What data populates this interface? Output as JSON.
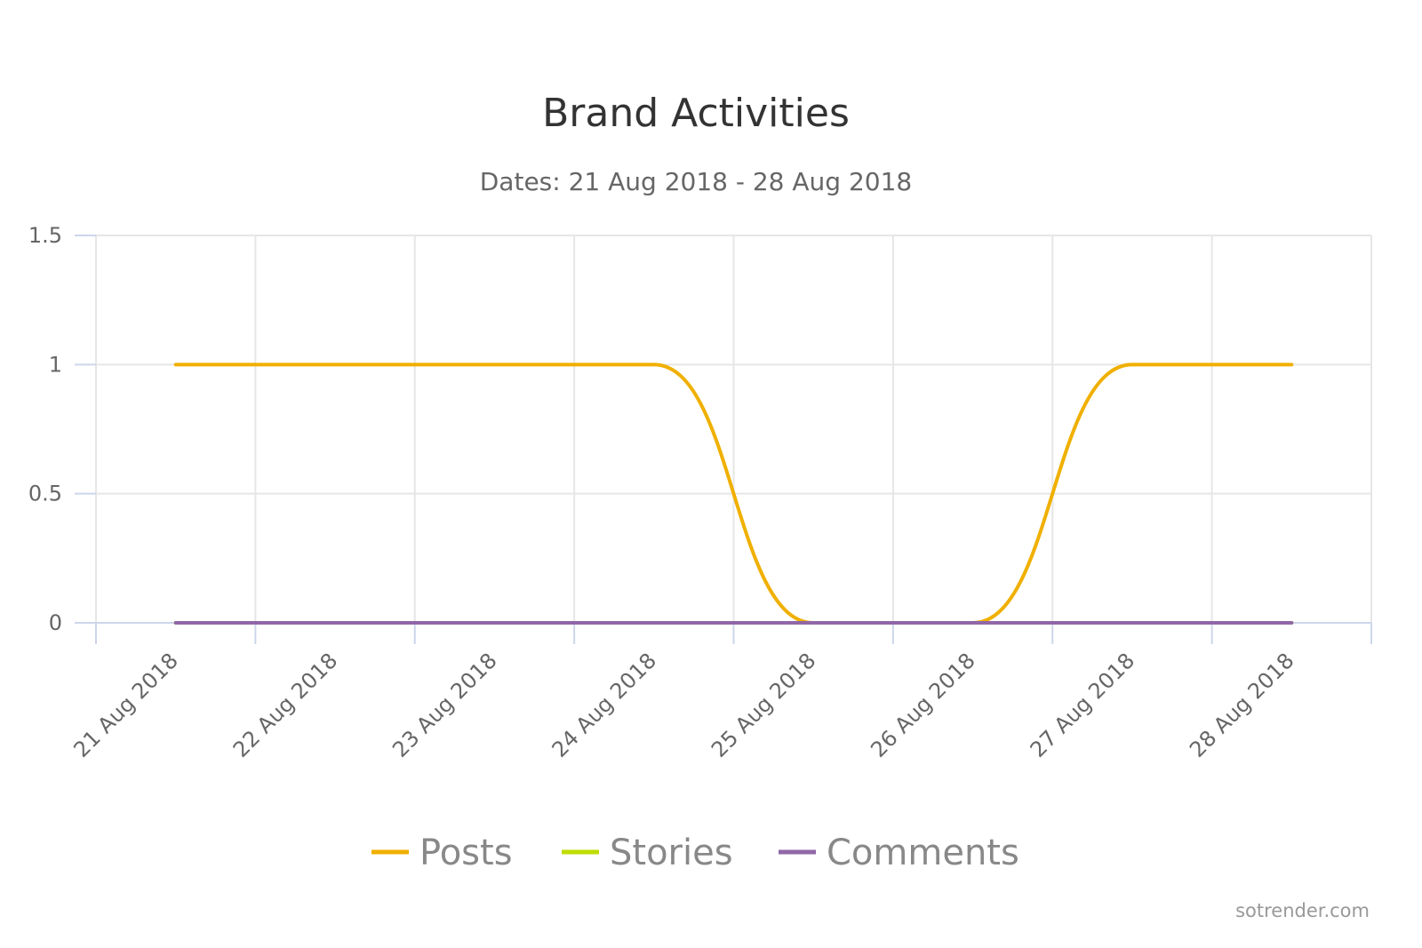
{
  "chart_data": {
    "type": "line",
    "title": "Brand Activities",
    "subtitle": "Dates: 21 Aug 2018 - 28 Aug 2018",
    "categories": [
      "21 Aug 2018",
      "22 Aug 2018",
      "23 Aug 2018",
      "24 Aug 2018",
      "25 Aug 2018",
      "26 Aug 2018",
      "27 Aug 2018",
      "28 Aug 2018"
    ],
    "yticks": [
      "0",
      "0.5",
      "1",
      "1.5"
    ],
    "ylim": [
      0,
      1.5
    ],
    "xlabel": "",
    "ylabel": "",
    "grid": true,
    "legend_position": "bottom-center",
    "series": [
      {
        "name": "Posts",
        "color": "#f0b000",
        "values": [
          1,
          1,
          1,
          1,
          0,
          0,
          1,
          1
        ]
      },
      {
        "name": "Stories",
        "color": "#c0dd00",
        "values": [
          0,
          0,
          0,
          0,
          0,
          0,
          0,
          0
        ]
      },
      {
        "name": "Comments",
        "color": "#9067a7",
        "values": [
          0,
          0,
          0,
          0,
          0,
          0,
          0,
          0
        ]
      }
    ],
    "credit": "sotrender.com"
  }
}
